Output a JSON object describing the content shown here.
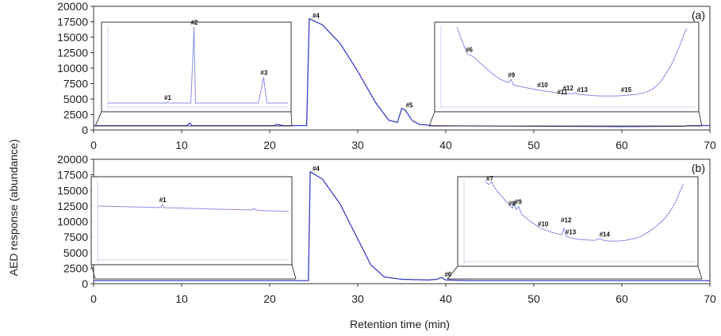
{
  "chart_data": {
    "type": "line",
    "xlabel": "Retention time (min)",
    "ylabel": "AED response (abundance)",
    "xlim": [
      0,
      70
    ],
    "ylim": [
      0,
      20000
    ],
    "x_ticks": [
      0,
      10,
      20,
      30,
      40,
      50,
      60,
      70
    ],
    "y_ticks": [
      0,
      2500,
      5000,
      7500,
      10000,
      12500,
      15000,
      17500,
      20000
    ],
    "panels": [
      {
        "panel_label": "(a)",
        "main_trace": {
          "x": [
            0,
            10.6,
            10.9,
            11.2,
            20.5,
            20.8,
            21.6,
            24.2,
            24.5,
            26,
            28,
            30,
            32,
            33.5,
            34.5,
            35,
            35.4,
            36.2,
            37,
            38.5,
            41,
            50,
            60,
            67,
            67.5,
            70
          ],
          "y": [
            700,
            700,
            1100,
            700,
            700,
            900,
            700,
            700,
            18000,
            17000,
            14000,
            9500,
            4500,
            1600,
            1200,
            3500,
            3200,
            1500,
            900,
            700,
            650,
            600,
            550,
            600,
            700,
            700
          ]
        },
        "peaks": [
          {
            "label": "#4",
            "x": 24.5,
            "y": 18000
          },
          {
            "label": "#5",
            "x": 35.1,
            "y": 3500
          }
        ],
        "inset_left": {
          "x_range": [
            0,
            23
          ],
          "x": [
            0,
            7.5,
            7.6,
            7.8,
            10.6,
            10.8,
            11.0,
            11.2,
            19.2,
            19.6,
            19.9,
            20.3,
            23
          ],
          "y": [
            0.03,
            0.03,
            0.04,
            0.03,
            0.03,
            0.5,
            1.0,
            0.03,
            0.03,
            0.2,
            0.36,
            0.03,
            0.03
          ],
          "annotations": [
            {
              "label": "#1",
              "x": 7.6,
              "y": 0.04
            },
            {
              "label": "#2",
              "x": 11.0,
              "y": 1.0
            },
            {
              "label": "#3",
              "x": 19.9,
              "y": 0.36
            }
          ]
        },
        "inset_right": {
          "x_range": [
            38,
            70
          ],
          "x": [
            40,
            40.8,
            41.3,
            41.7,
            42.2,
            42.8,
            43.5,
            44.5,
            45.5,
            46.5,
            46.8,
            47.1,
            48,
            50,
            52,
            53.5,
            54.5,
            54.8,
            55.3,
            56.5,
            58,
            60,
            61.5,
            62.5,
            63.5,
            64.5,
            65,
            65.5,
            66,
            66.5,
            67,
            67.5,
            68,
            68.4,
            68.7,
            68.9
          ],
          "y": [
            1.0,
            0.78,
            0.66,
            0.64,
            0.61,
            0.55,
            0.49,
            0.4,
            0.33,
            0.29,
            0.33,
            0.26,
            0.24,
            0.2,
            0.17,
            0.15,
            0.15,
            0.16,
            0.14,
            0.13,
            0.12,
            0.12,
            0.13,
            0.14,
            0.16,
            0.2,
            0.24,
            0.29,
            0.36,
            0.44,
            0.53,
            0.64,
            0.76,
            0.87,
            0.95,
            0.98
          ],
          "annotations": [
            {
              "label": "#6",
              "x": 41.5,
              "y": 0.65
            },
            {
              "label": "#9",
              "x": 46.8,
              "y": 0.33
            },
            {
              "label": "#10",
              "x": 50.5,
              "y": 0.2
            },
            {
              "label": "#11",
              "x": 53.0,
              "y": 0.11
            },
            {
              "label": "#12",
              "x": 53.7,
              "y": 0.16
            },
            {
              "label": "#13",
              "x": 55.5,
              "y": 0.14
            },
            {
              "label": "#15",
              "x": 61.0,
              "y": 0.14
            }
          ]
        }
      },
      {
        "panel_label": "(b)",
        "main_trace": {
          "x": [
            0,
            23.8,
            24.4,
            24.6,
            26,
            28,
            30,
            31.5,
            33,
            35,
            38,
            39,
            39.5,
            40,
            43,
            50,
            60,
            70
          ],
          "y": [
            500,
            500,
            500,
            18000,
            16800,
            12800,
            7200,
            3000,
            1100,
            700,
            600,
            700,
            1000,
            600,
            500,
            500,
            500,
            500
          ]
        },
        "peaks": [
          {
            "label": "#4",
            "x": 24.5,
            "y": 18000
          },
          {
            "label": "#6",
            "x": 39.5,
            "y": 1000
          }
        ],
        "inset_left": {
          "x_range": [
            0,
            23
          ],
          "x": [
            0,
            2,
            4,
            6,
            7.6,
            7.8,
            8.0,
            10,
            14,
            18,
            18.6,
            18.8,
            19.0,
            20,
            23
          ],
          "y": [
            0.68,
            0.675,
            0.67,
            0.665,
            0.66,
            0.7,
            0.66,
            0.655,
            0.64,
            0.63,
            0.63,
            0.65,
            0.63,
            0.62,
            0.61
          ],
          "annotations": [
            {
              "label": "#1",
              "x": 7.8,
              "y": 0.7
            }
          ]
        },
        "inset_right": {
          "x_range": [
            40,
            70
          ],
          "x": [
            42.8,
            43.2,
            43.6,
            44,
            44.3,
            45,
            45.8,
            46.3,
            46.5,
            46.8,
            47.1,
            47.5,
            48.5,
            50,
            51.5,
            52.7,
            53.0,
            53.3,
            54,
            55,
            57,
            57.6,
            58.2,
            59,
            60,
            61,
            62,
            63,
            64,
            65,
            66,
            66.8,
            67.5,
            68,
            68.5
          ],
          "y": [
            1.0,
            0.96,
            0.99,
            0.92,
            0.88,
            0.8,
            0.71,
            0.66,
            0.72,
            0.64,
            0.68,
            0.58,
            0.5,
            0.4,
            0.35,
            0.32,
            0.4,
            0.3,
            0.28,
            0.26,
            0.25,
            0.27,
            0.25,
            0.24,
            0.24,
            0.25,
            0.27,
            0.3,
            0.36,
            0.43,
            0.52,
            0.62,
            0.74,
            0.86,
            0.97
          ],
          "annotations": [
            {
              "label": "#7",
              "x": 43.3,
              "y": 0.98
            },
            {
              "label": "#8",
              "x": 46.2,
              "y": 0.66
            },
            {
              "label": "#9",
              "x": 47.0,
              "y": 0.68
            },
            {
              "label": "#10",
              "x": 50.0,
              "y": 0.4
            },
            {
              "label": "#12",
              "x": 53.0,
              "y": 0.45
            },
            {
              "label": "#13",
              "x": 53.6,
              "y": 0.3
            },
            {
              "label": "#14",
              "x": 58.0,
              "y": 0.27
            }
          ]
        }
      }
    ]
  }
}
